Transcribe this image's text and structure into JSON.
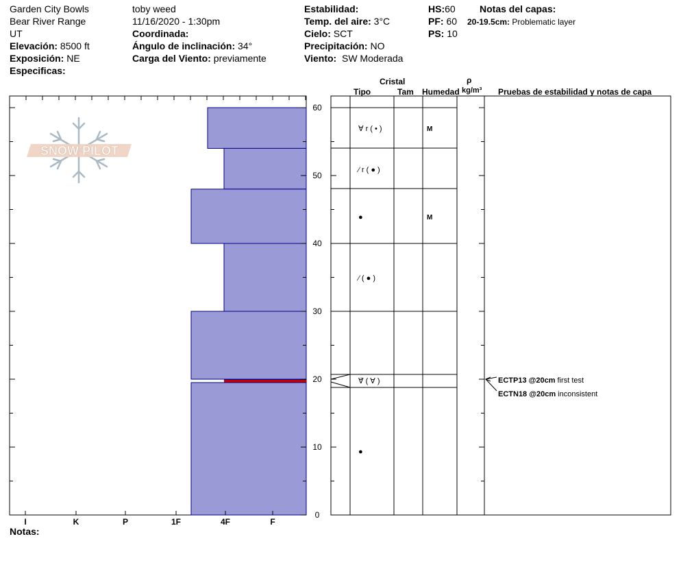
{
  "header": {
    "location": "Garden City Bowls",
    "range": "Bear River Range",
    "state": "UT",
    "elevation_label": "Elevación:",
    "elevation_value": "8500 ft",
    "aspect_label": "Exposición:",
    "aspect_value": "NE",
    "specifics_label": "Especificas:",
    "observer": "toby weed",
    "datetime": "11/16/2020 - 1:30pm",
    "coords_label": "Coordinada:",
    "slope_label": "Ángulo de inclinación:",
    "slope_value": "34°",
    "wind_load_label": "Carga del Viento:",
    "wind_load_value": "previamente",
    "stability_label": "Estabilidad:",
    "air_temp_label": "Temp. del aire:",
    "air_temp_value": "3°C",
    "sky_label": "Cielo:",
    "sky_value": "SCT",
    "precip_label": "Precipitación:",
    "precip_value": "NO",
    "wind_label": "Viento:",
    "wind_value": "SW Moderada",
    "hs_label": "HS:",
    "hs_value": "60",
    "pf_label": "PF:",
    "pf_value": "60",
    "ps_label": "PS:",
    "ps_value": "10",
    "layer_notes_label": "Notas del capas:",
    "layer_note_depth": "20-19.5cm:",
    "layer_note_text": "Problematic layer"
  },
  "logo_text": "SNOW PILOT",
  "columns": {
    "crystal": "Cristal",
    "type": "Tipo",
    "size": "Tam",
    "moisture": "Humedad",
    "density_symbol": "ρ",
    "density_unit": "kg/m³",
    "tests": "Pruebas de estabilidad y notas de capa"
  },
  "notes_label": "Notas:",
  "chart_data": {
    "type": "snow_profile",
    "hardness_scale": [
      "I",
      "K",
      "P",
      "1F",
      "4F",
      "F"
    ],
    "depth_ticks": [
      "60",
      "50",
      "40",
      "30",
      "20",
      "10",
      "0"
    ],
    "depth_range_cm": [
      0,
      60
    ],
    "layers": [
      {
        "top": 60,
        "bottom": 54,
        "hardness": "4F-",
        "crystal": "∀ r ( • )",
        "moisture": "M"
      },
      {
        "top": 54,
        "bottom": 48,
        "hardness": "4F+",
        "crystal": "⁄ r ( ● )",
        "moisture": ""
      },
      {
        "top": 48,
        "bottom": 40,
        "hardness": "1F+",
        "crystal": "●",
        "moisture": "M"
      },
      {
        "top": 40,
        "bottom": 30,
        "hardness": "4F+",
        "crystal": "⁄ ( ● )",
        "moisture": ""
      },
      {
        "top": 30,
        "bottom": 20,
        "hardness": "1F+",
        "crystal": "",
        "moisture": ""
      },
      {
        "top": 20,
        "bottom": 19.5,
        "hardness": "4F+",
        "crystal": "∀̄ ( ∀ )",
        "moisture": "",
        "problematic": true
      },
      {
        "top": 19.5,
        "bottom": 0,
        "hardness": "1F+",
        "crystal": "●",
        "moisture": ""
      }
    ],
    "tests": [
      {
        "code": "ECTP13 @20cm",
        "comment": "first test"
      },
      {
        "code": "ECTN18 @20cm",
        "comment": "inconsistent"
      }
    ],
    "colors": {
      "layer_fill": "#9a9ad6",
      "layer_stroke": "#00008b",
      "problem_line": "#cc0000"
    }
  }
}
